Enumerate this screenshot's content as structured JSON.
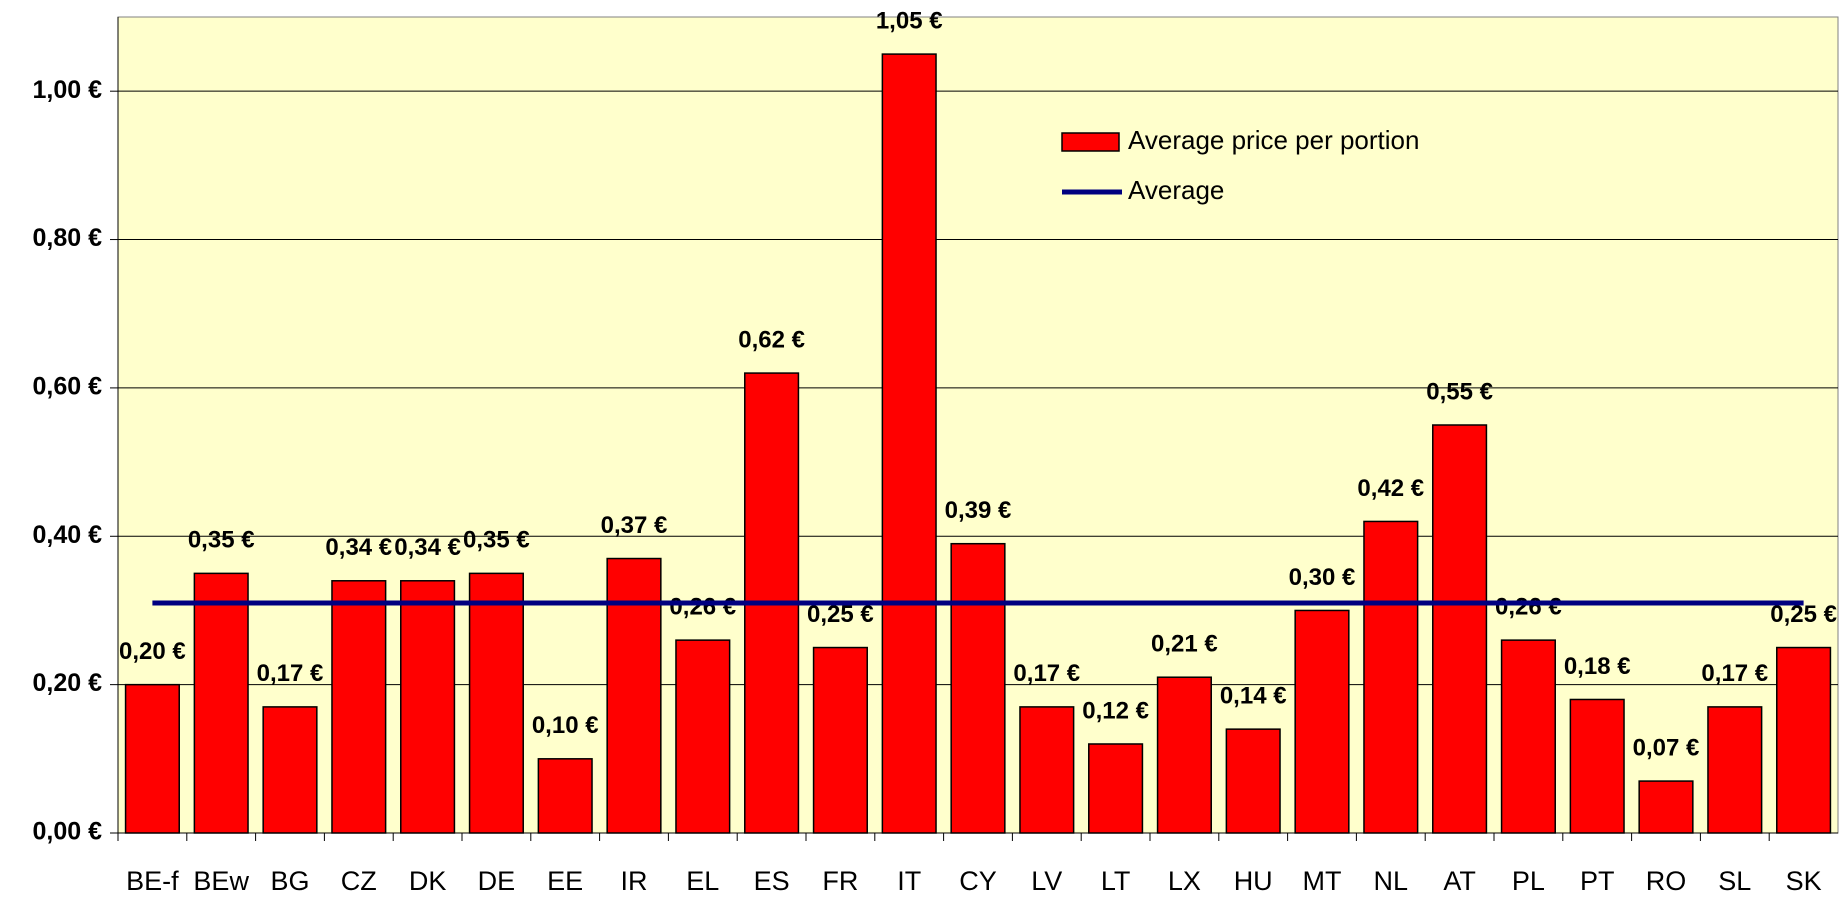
{
  "chart_data": {
    "type": "bar",
    "categories": [
      "BE-f",
      "BEw",
      "BG",
      "CZ",
      "DK",
      "DE",
      "EE",
      "IR",
      "EL",
      "ES",
      "FR",
      "IT",
      "CY",
      "LV",
      "LT",
      "LX",
      "HU",
      "MT",
      "NL",
      "AT",
      "PL",
      "PT",
      "RO",
      "SL",
      "SK"
    ],
    "series": [
      {
        "name": "Average price per portion",
        "color": "#ff0000",
        "values": [
          0.2,
          0.35,
          0.17,
          0.34,
          0.34,
          0.35,
          0.1,
          0.37,
          0.26,
          0.62,
          0.25,
          1.05,
          0.39,
          0.17,
          0.12,
          0.21,
          0.14,
          0.3,
          0.42,
          0.55,
          0.26,
          0.18,
          0.07,
          0.17,
          0.25
        ],
        "value_labels": [
          "0,20 €",
          "0,35 €",
          "0,17 €",
          "0,34 €",
          "0,34 €",
          "0,35 €",
          "0,10 €",
          "0,37 €",
          "0,26 €",
          "0,62 €",
          "0,25 €",
          "1,05 €",
          "0,39 €",
          "0,17 €",
          "0,12 €",
          "0,21 €",
          "0,14 €",
          "0,30 €",
          "0,42 €",
          "0,55 €",
          "0,26 €",
          "0,18 €",
          "0,07 €",
          "0,17 €",
          "0,25 €"
        ]
      }
    ],
    "average": {
      "name": "Average",
      "color": "#000080",
      "value": 0.31
    },
    "ylim": [
      0,
      1.1
    ],
    "yticks": [
      {
        "value": 0,
        "label": "0,00 €"
      },
      {
        "value": 0.2,
        "label": "0,20 €"
      },
      {
        "value": 0.4,
        "label": "0,40 €"
      },
      {
        "value": 0.6,
        "label": "0,60 €"
      },
      {
        "value": 0.8,
        "label": "0,80 €"
      },
      {
        "value": 1.0,
        "label": "1,00 €"
      }
    ],
    "grid": true,
    "legend": "upper right"
  }
}
